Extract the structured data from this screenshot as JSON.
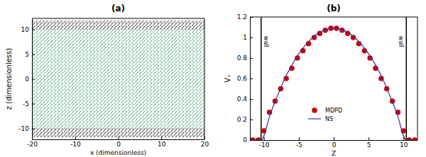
{
  "chart_data": [
    {
      "type": "band",
      "title": "(a)",
      "xlabel": "x (dimensionless)",
      "ylabel": "z (dimensionless)",
      "xlim": [
        -20,
        20
      ],
      "ylim": [
        -12.2,
        12.2
      ],
      "xticks": [
        -20,
        -10,
        0,
        10,
        20
      ],
      "yticks": [
        -10,
        -5,
        0,
        5,
        10
      ],
      "grid": false,
      "series": [
        {
          "color": "#000000",
          "values": [
            -11.8,
            -9.9
          ]
        },
        {
          "color": "#2e9a66",
          "values": [
            -9.9,
            9.9
          ]
        },
        {
          "color": "#000000",
          "values": [
            9.9,
            11.8
          ]
        }
      ]
    },
    {
      "type": "line",
      "title": "(b)",
      "xlabel": "Z",
      "ylabel": "Vₓ",
      "xlim": [
        -12,
        12
      ],
      "ylim": [
        0,
        1.2
      ],
      "xticks": [
        -10,
        -5,
        0,
        5,
        10
      ],
      "yticks": [
        0,
        0.2,
        0.4,
        0.6,
        0.8,
        1,
        1.2
      ],
      "grid": false,
      "legend": "lower center",
      "walls": [
        {
          "value": -10.4,
          "label": "wall"
        },
        {
          "value": 10.4,
          "label": "wall"
        }
      ],
      "series": [
        {
          "name": "MDPD",
          "type": "scatter",
          "marker": "circle",
          "color": "#cc0000",
          "x": [
            -11.6,
            -10.8,
            -10,
            -9.2,
            -8.4,
            -7.6,
            -6.8,
            -6,
            -5.2,
            -4.4,
            -3.6,
            -2.8,
            -2,
            -1.2,
            -0.4,
            0.4,
            1.2,
            2,
            2.8,
            3.6,
            4.4,
            5.2,
            6,
            6.8,
            7.6,
            8.4,
            9.2,
            10,
            10.8,
            11.6
          ],
          "values": [
            0,
            0,
            0.09,
            0.27,
            0.38,
            0.5,
            0.6,
            0.7,
            0.8,
            0.87,
            0.94,
            1.0,
            1.04,
            1.07,
            1.09,
            1.09,
            1.07,
            1.04,
            1.0,
            0.94,
            0.87,
            0.8,
            0.7,
            0.6,
            0.5,
            0.38,
            0.27,
            0.09,
            0,
            0
          ]
        },
        {
          "name": "NS",
          "type": "line",
          "line_style": "solid",
          "color": "#3333aa",
          "x": [
            -11.6,
            -10.4,
            -9,
            -8,
            -7,
            -6,
            -5,
            -4,
            -3,
            -2,
            -1,
            0,
            1,
            2,
            3,
            4,
            5,
            6,
            7,
            8,
            9,
            10.4,
            11.6
          ],
          "values": [
            0,
            0,
            0.27,
            0.44,
            0.6,
            0.73,
            0.84,
            0.93,
            1.0,
            1.05,
            1.08,
            1.09,
            1.08,
            1.05,
            1.0,
            0.93,
            0.84,
            0.73,
            0.6,
            0.44,
            0.27,
            0,
            0
          ]
        }
      ]
    }
  ]
}
